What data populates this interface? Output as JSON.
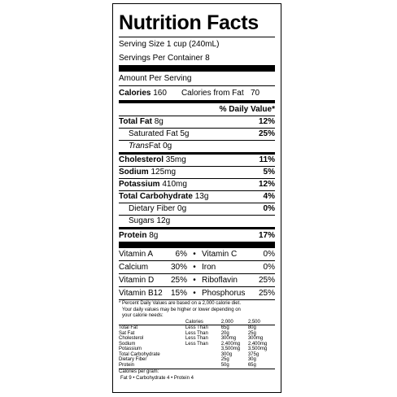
{
  "title": "Nutrition Facts",
  "serving_size": "Serving Size  1 cup (240mL)",
  "servings_per_container": "Servings Per Container  8",
  "amount_per_serving": "Amount Per Serving",
  "calories_label": "Calories",
  "calories_value": "160",
  "calories_fat_label": "Calories from Fat",
  "calories_fat_value": "70",
  "dv_header": "% Daily Value*",
  "total_fat": {
    "label": "Total Fat",
    "value": "8g",
    "dv": "12%"
  },
  "saturated_fat": {
    "label": "Saturated Fat",
    "value": "5g",
    "dv": "25%"
  },
  "trans_fat": {
    "label_italic": "Trans",
    "label_rest": " Fat",
    "value": "0g"
  },
  "cholesterol": {
    "label": "Cholesterol",
    "value": "35mg",
    "dv": "11%"
  },
  "sodium": {
    "label": "Sodium",
    "value": "125mg",
    "dv": "5%"
  },
  "potassium": {
    "label": "Potassium",
    "value": "410mg",
    "dv": "12%"
  },
  "total_carb": {
    "label": "Total Carbohydrate",
    "value": "13g",
    "dv": "4%"
  },
  "fiber": {
    "label": "Dietary Fiber",
    "value": "0g",
    "dv": "0%"
  },
  "sugars": {
    "label": "Sugars",
    "value": "12g"
  },
  "protein": {
    "label": "Protein",
    "value": "8g",
    "dv": "17%"
  },
  "vitamins": [
    {
      "a": "Vitamin A",
      "ap": "6%",
      "b": "Vitamin C",
      "bp": "0%"
    },
    {
      "a": "Calcium",
      "ap": "30%",
      "b": "Iron",
      "bp": "0%"
    },
    {
      "a": "Vitamin D",
      "ap": "25%",
      "b": "Riboflavin",
      "bp": "25%"
    },
    {
      "a": "Vitamin B12",
      "ap": "15%",
      "b": "Phosphorus",
      "bp": "25%"
    }
  ],
  "bullet": "•",
  "footnote_1": "* Percent Daily Values are based on a 2,000 calorie diet.",
  "footnote_2": "Your daily values may be higher or lower depending on",
  "footnote_3": "your calorie needs:",
  "table": {
    "head": [
      "Calories",
      "2,000",
      "2,500"
    ],
    "rows": [
      [
        "Total Fat",
        "Less Than",
        "65g",
        "80g"
      ],
      [
        "  Sat Fat",
        "Less Than",
        "20g",
        "25g"
      ],
      [
        "Cholesterol",
        "Less Than",
        "300mg",
        "300mg"
      ],
      [
        "Sodium",
        "Less Than",
        "2,400mg",
        "2,400mg"
      ],
      [
        "Potassium",
        "",
        "3,500mg",
        "3,500mg"
      ],
      [
        "Total Carbohydrate",
        "",
        "300g",
        "375g"
      ],
      [
        "  Dietary Fiber",
        "",
        "25g",
        "30g"
      ],
      [
        "Protein",
        "",
        "50g",
        "65g"
      ]
    ]
  },
  "cal_per_gram": "Calories per gram:",
  "cal_per_gram_values": "Fat 9  •  Carbohydrate 4  •  Protein 4"
}
